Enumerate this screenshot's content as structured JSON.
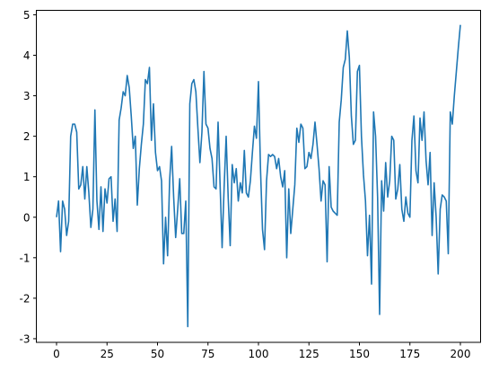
{
  "chart_data": {
    "type": "line",
    "color": "#1f77b4",
    "x": [
      0,
      1,
      2,
      3,
      4,
      5,
      6,
      7,
      8,
      9,
      10,
      11,
      12,
      13,
      14,
      15,
      16,
      17,
      18,
      19,
      20,
      21,
      22,
      23,
      24,
      25,
      26,
      27,
      28,
      29,
      30,
      31,
      32,
      33,
      34,
      35,
      36,
      37,
      38,
      39,
      40,
      41,
      42,
      43,
      44,
      45,
      46,
      47,
      48,
      49,
      50,
      51,
      52,
      53,
      54,
      55,
      56,
      57,
      58,
      59,
      60,
      61,
      62,
      63,
      64,
      65,
      66,
      67,
      68,
      69,
      70,
      71,
      72,
      73,
      74,
      75,
      76,
      77,
      78,
      79,
      80,
      81,
      82,
      83,
      84,
      85,
      86,
      87,
      88,
      89,
      90,
      91,
      92,
      93,
      94,
      95,
      96,
      97,
      98,
      99,
      100,
      101,
      102,
      103,
      104,
      105,
      106,
      107,
      108,
      109,
      110,
      111,
      112,
      113,
      114,
      115,
      116,
      117,
      118,
      119,
      120,
      121,
      122,
      123,
      124,
      125,
      126,
      127,
      128,
      129,
      130,
      131,
      132,
      133,
      134,
      135,
      136,
      137,
      138,
      139,
      140,
      141,
      142,
      143,
      144,
      145,
      146,
      147,
      148,
      149,
      150,
      151,
      152,
      153,
      154,
      155,
      156,
      157,
      158,
      159,
      160,
      161,
      162,
      163,
      164,
      165,
      166,
      167,
      168,
      169,
      170,
      171,
      172,
      173,
      174,
      175,
      176,
      177,
      178,
      179,
      180,
      181,
      182,
      183,
      184,
      185,
      186,
      187,
      188,
      189,
      190,
      191,
      192,
      193,
      194,
      195,
      196,
      197,
      198,
      199,
      200
    ],
    "values": [
      0,
      0.4,
      -0.85,
      0.4,
      0.2,
      -0.45,
      -0.1,
      2.0,
      2.3,
      2.3,
      2.1,
      0.7,
      0.8,
      1.25,
      0.45,
      1.25,
      0.6,
      -0.25,
      0.2,
      2.65,
      0.4,
      -0.3,
      0.75,
      -0.35,
      0.7,
      0.35,
      0.95,
      1.0,
      -0.1,
      0.45,
      -0.35,
      2.4,
      2.7,
      3.1,
      3.0,
      3.5,
      3.2,
      2.5,
      1.7,
      2.0,
      0.3,
      1.2,
      1.8,
      2.3,
      3.4,
      3.3,
      3.7,
      1.9,
      2.8,
      1.6,
      1.15,
      1.25,
      0.9,
      -1.15,
      0.0,
      -0.95,
      0.9,
      1.75,
      0.5,
      -0.5,
      0.2,
      0.95,
      -0.4,
      -0.4,
      0.4,
      -2.7,
      2.8,
      3.3,
      3.4,
      3.1,
      2.2,
      1.35,
      2.1,
      3.6,
      2.3,
      2.2,
      1.7,
      1.45,
      0.75,
      0.7,
      2.35,
      0.8,
      -0.75,
      0.75,
      2.0,
      0.5,
      -0.7,
      1.3,
      0.85,
      1.2,
      0.4,
      0.85,
      0.6,
      1.65,
      0.6,
      0.5,
      0.9,
      1.6,
      2.25,
      1.95,
      3.35,
      1.2,
      -0.3,
      -0.8,
      0.9,
      1.55,
      1.5,
      1.55,
      1.5,
      1.2,
      1.45,
      1.0,
      0.75,
      1.15,
      -1.0,
      0.7,
      -0.4,
      0.2,
      0.8,
      2.2,
      1.85,
      2.3,
      2.2,
      1.2,
      1.25,
      1.6,
      1.45,
      1.8,
      2.35,
      1.8,
      1.2,
      0.4,
      0.9,
      0.8,
      -1.1,
      1.25,
      0.25,
      0.15,
      0.1,
      0.05,
      2.35,
      2.9,
      3.7,
      3.9,
      4.6,
      3.95,
      2.5,
      1.8,
      1.9,
      3.6,
      3.75,
      2.0,
      1.05,
      0.4,
      -0.95,
      0.05,
      -1.65,
      2.6,
      2.0,
      0.5,
      -2.4,
      0.9,
      0.15,
      1.35,
      0.5,
      0.9,
      2.0,
      1.9,
      0.45,
      0.7,
      1.3,
      0.2,
      -0.1,
      0.5,
      0.1,
      0.0,
      1.9,
      2.5,
      1.15,
      0.85,
      2.45,
      1.9,
      2.6,
      1.4,
      0.8,
      1.6,
      -0.45,
      0.85,
      0.0,
      -1.4,
      0.2,
      0.55,
      0.5,
      0.4,
      -0.9,
      2.6,
      2.3,
      3.0,
      3.6,
      4.2,
      4.75
    ],
    "xlim": [
      -10,
      210
    ],
    "ylim": [
      -3.09,
      5.11
    ],
    "xticks": [
      0,
      25,
      50,
      75,
      100,
      125,
      150,
      175,
      200
    ],
    "yticks": [
      -3,
      -2,
      -1,
      0,
      1,
      2,
      3,
      4,
      5
    ]
  }
}
